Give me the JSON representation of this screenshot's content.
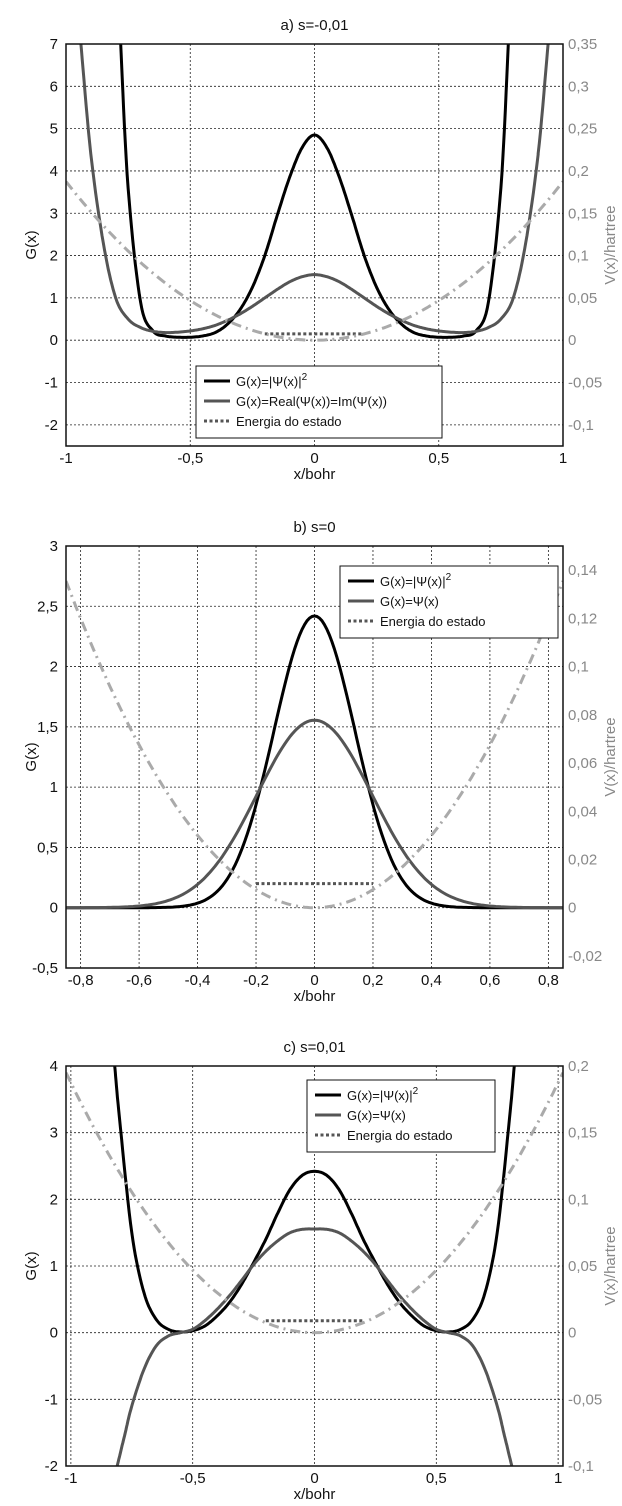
{
  "colors": {
    "black": "#000000",
    "dark_gray": "#555555",
    "light_gray": "#aaaaaa",
    "right_axis": "#888888"
  },
  "chart_data": [
    {
      "type": "line",
      "title": "a) s=-0,01",
      "xlabel": "x/bohr",
      "ylabel": "G(x)",
      "y2label": "V(x)/hartree",
      "xlim": [
        -1.0,
        1.0
      ],
      "ylim": [
        -2.5,
        7
      ],
      "y2lim": [
        -0.125,
        0.35
      ],
      "xticks": [
        "-1",
        "-0,5",
        "0",
        "0,5",
        "1"
      ],
      "yticks": [
        "-2",
        "-1",
        "0",
        "1",
        "2",
        "3",
        "4",
        "5",
        "6",
        "7"
      ],
      "y2ticks": [
        "-0,1",
        "-0,05",
        "0",
        "0,05",
        "0,1",
        "0,15",
        "0,2",
        "0,25",
        "0,3",
        "0,35"
      ],
      "legend_position": "bottom-center",
      "grid": true,
      "energy": {
        "y2": 0.0075,
        "x": [
          -0.2,
          0.2
        ]
      },
      "series": [
        {
          "name": "G(x)=|Ψ(x)|",
          "sup": "2",
          "color": "#000000",
          "style": "solid",
          "x": [
            -0.78,
            -0.75,
            -0.7,
            -0.65,
            -0.6,
            -0.55,
            -0.5,
            -0.45,
            -0.4,
            -0.35,
            -0.3,
            -0.25,
            -0.2,
            -0.15,
            -0.1,
            -0.05,
            0,
            0.05,
            0.1,
            0.15,
            0.2,
            0.25,
            0.3,
            0.35,
            0.4,
            0.45,
            0.5,
            0.55,
            0.6,
            0.65,
            0.7,
            0.75,
            0.78
          ],
          "y": [
            7.0,
            3.6,
            0.9,
            0.22,
            0.1,
            0.07,
            0.07,
            0.1,
            0.18,
            0.38,
            0.72,
            1.25,
            2.0,
            2.95,
            3.85,
            4.55,
            4.85,
            4.55,
            3.85,
            2.95,
            2.0,
            1.25,
            0.72,
            0.38,
            0.18,
            0.1,
            0.07,
            0.07,
            0.1,
            0.22,
            0.9,
            3.6,
            7.0
          ]
        },
        {
          "name": "G(x)=Real(Ψ(x))=Im(Ψ(x))",
          "color": "#555555",
          "style": "solid",
          "x": [
            -0.94,
            -0.9,
            -0.85,
            -0.8,
            -0.75,
            -0.7,
            -0.65,
            -0.6,
            -0.55,
            -0.5,
            -0.45,
            -0.4,
            -0.35,
            -0.3,
            -0.25,
            -0.2,
            -0.15,
            -0.1,
            -0.05,
            0,
            0.05,
            0.1,
            0.15,
            0.2,
            0.25,
            0.3,
            0.35,
            0.4,
            0.45,
            0.5,
            0.55,
            0.6,
            0.65,
            0.7,
            0.75,
            0.8,
            0.85,
            0.9,
            0.94
          ],
          "y": [
            7.0,
            4.4,
            2.3,
            1.0,
            0.5,
            0.3,
            0.21,
            0.18,
            0.19,
            0.22,
            0.27,
            0.35,
            0.47,
            0.62,
            0.8,
            1.0,
            1.2,
            1.38,
            1.5,
            1.55,
            1.5,
            1.38,
            1.2,
            1.0,
            0.8,
            0.62,
            0.47,
            0.35,
            0.27,
            0.22,
            0.19,
            0.18,
            0.21,
            0.3,
            0.5,
            1.0,
            2.3,
            4.4,
            7.0
          ]
        },
        {
          "name": "Energia do estado",
          "color": "#555555",
          "style": "dotted"
        },
        {
          "name": "V(x)",
          "axis": "right",
          "color": "#aaaaaa",
          "style": "dashdot",
          "fn": "parabola",
          "k": 0.1875
        }
      ]
    },
    {
      "type": "line",
      "title": "b) s=0",
      "xlabel": "x/bohr",
      "ylabel": "G(x)",
      "y2label": "V(x)/hartree",
      "xlim": [
        -0.85,
        0.85
      ],
      "ylim": [
        -0.5,
        3
      ],
      "y2lim": [
        -0.025,
        0.15
      ],
      "xticks": [
        "-0,8",
        "-0,6",
        "-0,4",
        "-0,2",
        "0",
        "0,2",
        "0,4",
        "0,6",
        "0,8"
      ],
      "yticks": [
        "-0,5",
        "0",
        "0,5",
        "1",
        "1,5",
        "2",
        "2,5",
        "3"
      ],
      "y2ticks": [
        "-0,02",
        "0",
        "0,02",
        "0,04",
        "0,06",
        "0,08",
        "0,1",
        "0,12",
        "0,14"
      ],
      "legend_position": "top-right",
      "grid": true,
      "energy": {
        "y2": 0.01,
        "x": [
          -0.2,
          0.2
        ]
      },
      "series": [
        {
          "name": "G(x)=|Ψ(x)|",
          "sup": "2",
          "color": "#000000",
          "style": "solid",
          "fn": "gauss",
          "a": 2.42,
          "b": 0.196
        },
        {
          "name": "G(x)=Ψ(x)",
          "color": "#555555",
          "style": "solid",
          "fn": "gauss",
          "a": 1.555,
          "b": 0.277
        },
        {
          "name": "Energia do estado",
          "color": "#555555",
          "style": "dotted"
        },
        {
          "name": "V(x)",
          "axis": "right",
          "color": "#aaaaaa",
          "style": "dashdot",
          "fn": "parabola",
          "k": 0.1875
        }
      ]
    },
    {
      "type": "line",
      "title": "c) s=0,01",
      "xlabel": "x/bohr",
      "ylabel": "G(x)",
      "y2label": "V(x)/hartree",
      "xlim": [
        -1.02,
        1.02
      ],
      "ylim": [
        -2,
        4
      ],
      "y2lim": [
        -0.1,
        0.2
      ],
      "xticks": [
        "-1",
        "-0,5",
        "0",
        "0,5",
        "1"
      ],
      "yticks": [
        "-2",
        "-1",
        "0",
        "1",
        "2",
        "3",
        "4"
      ],
      "y2ticks": [
        "-0,1",
        "-0,05",
        "0",
        "0,05",
        "0,1",
        "0,15",
        "0,2"
      ],
      "legend_position": "top-right",
      "grid": true,
      "energy": {
        "y2": 0.009,
        "x": [
          -0.2,
          0.2
        ]
      },
      "series": [
        {
          "name": "G(x)=|Ψ(x)|",
          "sup": "2",
          "color": "#000000",
          "style": "solid",
          "x": [
            -0.82,
            -0.8,
            -0.75,
            -0.7,
            -0.65,
            -0.6,
            -0.55,
            -0.5,
            -0.45,
            -0.4,
            -0.35,
            -0.3,
            -0.25,
            -0.2,
            -0.15,
            -0.1,
            -0.05,
            0,
            0.05,
            0.1,
            0.15,
            0.2,
            0.25,
            0.3,
            0.35,
            0.4,
            0.45,
            0.5,
            0.55,
            0.6,
            0.65,
            0.7,
            0.75,
            0.8,
            0.82
          ],
          "y": [
            4.0,
            3.2,
            1.5,
            0.6,
            0.2,
            0.05,
            0.01,
            0.03,
            0.1,
            0.25,
            0.45,
            0.72,
            1.05,
            1.4,
            1.8,
            2.15,
            2.36,
            2.42,
            2.36,
            2.15,
            1.8,
            1.4,
            1.05,
            0.72,
            0.45,
            0.25,
            0.1,
            0.03,
            0.01,
            0.05,
            0.2,
            0.6,
            1.5,
            3.2,
            4.0
          ]
        },
        {
          "name": "G(x)=Ψ(x)",
          "color": "#555555",
          "style": "solid",
          "x": [
            -0.81,
            -0.78,
            -0.75,
            -0.7,
            -0.65,
            -0.6,
            -0.55,
            -0.5,
            -0.45,
            -0.4,
            -0.35,
            -0.3,
            -0.25,
            -0.2,
            -0.15,
            -0.1,
            -0.05,
            0,
            0.05,
            0.1,
            0.15,
            0.2,
            0.25,
            0.3,
            0.35,
            0.4,
            0.45,
            0.5,
            0.55,
            0.6,
            0.65,
            0.7,
            0.75,
            0.78,
            0.81
          ],
          "y": [
            -2.0,
            -1.55,
            -1.1,
            -0.55,
            -0.2,
            -0.05,
            0.0,
            0.05,
            0.18,
            0.35,
            0.55,
            0.78,
            1.02,
            1.22,
            1.38,
            1.5,
            1.55,
            1.555,
            1.55,
            1.5,
            1.38,
            1.22,
            1.02,
            0.78,
            0.55,
            0.35,
            0.18,
            0.05,
            0.0,
            -0.05,
            -0.2,
            -0.55,
            -1.1,
            -1.55,
            -2.0
          ]
        },
        {
          "name": "Energia do estado",
          "color": "#555555",
          "style": "dotted"
        },
        {
          "name": "V(x)",
          "axis": "right",
          "color": "#aaaaaa",
          "style": "dashdot",
          "fn": "parabola",
          "k": 0.1875
        }
      ]
    }
  ]
}
